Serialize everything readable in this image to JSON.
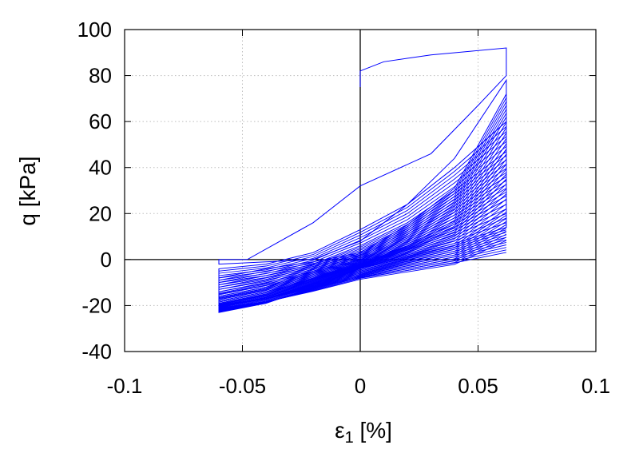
{
  "chart_data": {
    "type": "line",
    "title": "",
    "xlabel": "ε₁ [%]",
    "xlabel_main": "ε",
    "xlabel_sub": "1",
    "xlabel_unit": " [%]",
    "ylabel": "q [kPa]",
    "xlim": [
      -0.1,
      0.1
    ],
    "ylim": [
      -40,
      100
    ],
    "x_ticks": [
      -0.1,
      -0.05,
      0,
      0.05,
      0.1
    ],
    "x_tick_labels": [
      "-0.1",
      "-0.05",
      "0",
      "0.05",
      "0.1"
    ],
    "y_ticks": [
      -40,
      -20,
      0,
      20,
      40,
      60,
      80,
      100
    ],
    "y_tick_labels": [
      "-40",
      "-20",
      "0",
      "20",
      "40",
      "60",
      "80",
      "100"
    ],
    "grid": true,
    "zero_lines": true,
    "legend": "none",
    "series_color": "#0000ff",
    "series": [
      {
        "description": "cyclic hysteresis loops, strain amplitude ±0.06 %",
        "x": [
          0.0,
          0.0,
          0.01,
          0.03,
          0.062,
          0.062,
          0.05,
          0.03,
          0.0,
          -0.02,
          -0.048,
          -0.06,
          -0.06,
          -0.04,
          -0.02,
          0.0,
          0.02,
          0.04,
          0.062,
          0.062,
          0.04,
          0.02,
          0.0,
          -0.02,
          -0.04,
          -0.06,
          -0.06,
          -0.04,
          -0.02,
          0.0,
          0.02,
          0.04,
          0.062,
          0.062,
          0.04,
          0.02,
          0.0,
          -0.02,
          -0.04,
          -0.06,
          -0.06,
          -0.04,
          -0.02,
          0.0,
          0.02,
          0.04,
          0.062,
          0.062,
          0.04,
          0.02,
          0.0,
          -0.02,
          -0.04,
          -0.06,
          -0.06,
          -0.04,
          -0.02,
          0.0,
          0.02,
          0.04,
          0.062,
          0.062,
          0.04,
          0.02,
          0.0,
          -0.02,
          -0.04,
          -0.06,
          -0.06,
          -0.04,
          -0.02,
          0.0,
          0.02,
          0.04,
          0.062,
          0.062,
          0.04,
          0.02,
          0.0,
          -0.02,
          -0.04,
          -0.06,
          -0.06,
          -0.04,
          -0.02,
          0.0,
          0.02,
          0.04,
          0.062
        ],
        "y": [
          75,
          82,
          86,
          89,
          92,
          80,
          67,
          46,
          32,
          16,
          0,
          0,
          -2,
          -1,
          0,
          8,
          24,
          44,
          78,
          60,
          40,
          24,
          13,
          3,
          -2,
          -4,
          -8,
          -4,
          -1,
          3,
          15,
          31,
          72,
          47,
          30,
          16,
          6,
          -2,
          -7,
          -10,
          -14,
          -10,
          -5,
          0,
          10,
          24,
          62,
          36,
          22,
          11,
          2,
          -5,
          -12,
          -16,
          -18,
          -14,
          -8,
          -2,
          6,
          17,
          48,
          26,
          14,
          6,
          -1,
          -8,
          -15,
          -19,
          -21,
          -17,
          -10,
          -3,
          4,
          12,
          35,
          14,
          7,
          2,
          -3,
          -10,
          -17,
          -21,
          -23,
          -19,
          -12,
          -4,
          1,
          6,
          22
        ]
      }
    ]
  }
}
